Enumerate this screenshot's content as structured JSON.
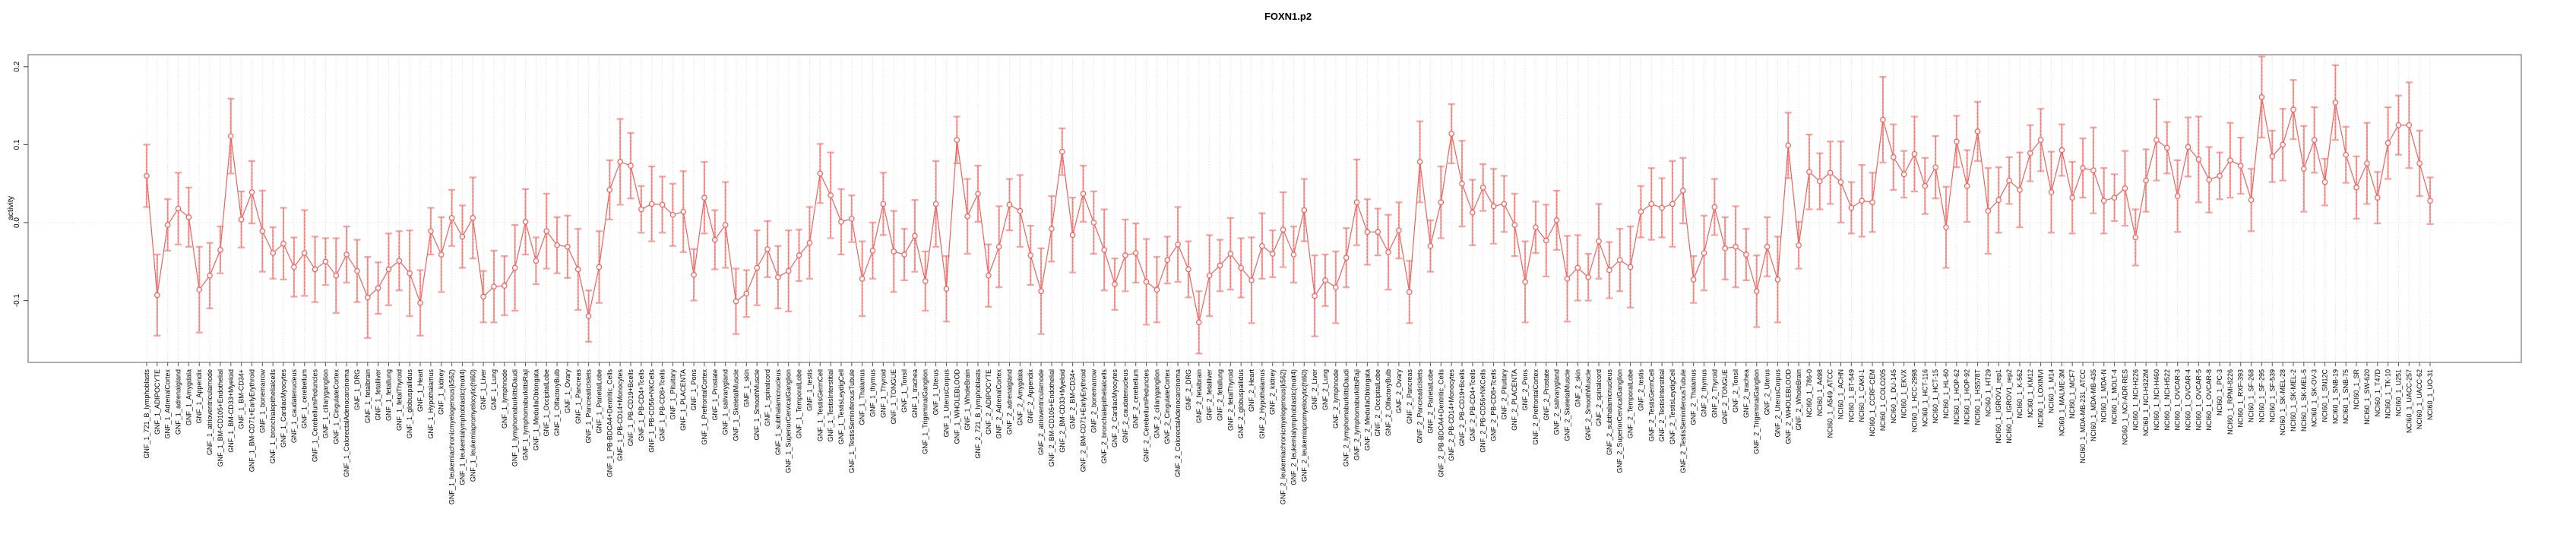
{
  "title": "FOXN1.p2",
  "y_axis_label": "activity",
  "chart_data": {
    "type": "line",
    "title": "FOXN1.p2",
    "xlabel": "",
    "ylabel": "activity",
    "ylim": [
      -0.155,
      0.215
    ],
    "yticks": [
      -0.1,
      0.0,
      0.1,
      0.2
    ],
    "ytick_labels": [
      "-0.1",
      "0.0",
      "0.1",
      "0.2"
    ],
    "grid": "vertical dotted gridline per category; dotted horizontal line at 0.0",
    "legend_position": "none",
    "marker": "open-circle",
    "line_style": "solid",
    "error_bars": true,
    "series_color": "#ee625e",
    "errorbar_color": "#f8a19d",
    "grid_color": "#d4d4d4",
    "frame_color": "#9a9a9a",
    "x_tick_label_rotation": 90,
    "categories": [
      "GNF_1_721_B_lymphoblasts",
      "GNF_1_ADIPOCYTE",
      "GNF_1_AdrenalCortex",
      "GNF_1_adrenalgland",
      "GNF_1_Amygdala",
      "GNF_1_Appendix",
      "GNF_1_atrioventricularnode",
      "GNF_1_BM-CD105+Endothelial",
      "GNF_1_BM-CD33+Myeloid",
      "GNF_1_BM-CD34+",
      "GNF_1_BM-CD71+EarlyErythroid",
      "GNF_1_bonemarrow",
      "GNF_1_bronchialepithelialcells",
      "GNF_1_CardiacMyocytes",
      "GNF_1_caudatenucleus",
      "GNF_1_cerebellum",
      "GNF_1_CerebellumPeduncles",
      "GNF_1_ciliaryganglion",
      "GNF_1_CingulateCortex",
      "GNF_1_ColorectalAdenocarcinoma",
      "GNF_1_DRG",
      "GNF_1_fetalbrain",
      "GNF_1_fetalliver",
      "GNF_1_fetallung",
      "GNF_1_fetalThyroid",
      "GNF_1_globuspallidus",
      "GNF_1_Heart",
      "GNF_1_Hypothalamus",
      "GNF_1_kidney",
      "GNF_1_leukemiachronicmyelogenous(k562)",
      "GNF_1_leukemialymphoblastic(molt4)",
      "GNF_1_leukemiapromyelocytic(hl60)",
      "GNF_1_Liver",
      "GNF_1_Lung",
      "GNF_1_lymphnode",
      "GNF_1_lymphomaburkittsDaudi",
      "GNF_1_lymphomaburkittsRaji",
      "GNF_1_MedullaOblongata",
      "GNF_1_OccipitalLobe",
      "GNF_1_OlfactoryBulb",
      "GNF_1_Ovary",
      "GNF_1_Pancreas",
      "GNF_1_PancreaticIslets",
      "GNF_1_ParietalLobe",
      "GNF_1_PB-BDCA4+Dentritic_Cells",
      "GNF_1_PB-CD14+Monocytes",
      "GNF_1_PB-CD19+Bcells",
      "GNF_1_PB-CD4+Tcells",
      "GNF_1_PB-CD56+NKCells",
      "GNF_1_PB-CD8+Tcells",
      "GNF_1_Pituitary",
      "GNF_1_PLACENTA",
      "GNF_1_Pons",
      "GNF_1_PrefrontalCortex",
      "GNF_1_Prostate",
      "GNF_1_salivarygland",
      "GNF_1_SkeletalMuscle",
      "GNF_1_skin",
      "GNF_1_SmoothMuscle",
      "GNF_1_spinalcord",
      "GNF_1_subthalamicnucleus",
      "GNF_1_SuperiorCervicalGanglion",
      "GNF_1_TemporalLobe",
      "GNF_1_testis",
      "GNF_1_TestisGermCell",
      "GNF_1_TestisInterstitial",
      "GNF_1_TestisLeydigCell",
      "GNF_1_TestisSeminiferousTubule",
      "GNF_1_Thalamus",
      "GNF_1_thymus",
      "GNF_1_Thyroid",
      "GNF_1_TONGUE",
      "GNF_1_Tonsil",
      "GNF_1_trachea",
      "GNF_1_TrigeminalGanglion",
      "GNF_1_Uterus",
      "GNF_1_UterusCorpus",
      "GNF_1_WHOLEBLOOD",
      "GNF_1_WholeBrain",
      "GNF_2_721_B_lymphoblasts",
      "GNF_2_ADIPOCYTE",
      "GNF_2_AdrenalCortex",
      "GNF_2_adrenalgland",
      "GNF_2_Amygdala",
      "GNF_2_Appendix",
      "GNF_2_atrioventricularnode",
      "GNF_2_BM-CD105+Endothelial",
      "GNF_2_BM-CD33+Myeloid",
      "GNF_2_BM-CD34+",
      "GNF_2_BM-CD71+EarlyErythroid",
      "GNF_2_bonemarrow",
      "GNF_2_bronchialepithelialcells",
      "GNF_2_CardiacMyocytes",
      "GNF_2_caudatenucleus",
      "GNF_2_cerebellum",
      "GNF_2_CerebellumPeduncles",
      "GNF_2_ciliaryganglion",
      "GNF_2_CingulateCortex",
      "GNF_2_ColorectalAdenocarcinoma",
      "GNF_2_DRG",
      "GNF_2_fetalbrain",
      "GNF_2_fetalliver",
      "GNF_2_fetallung",
      "GNF_2_fetalThyroid",
      "GNF_2_globuspallidus",
      "GNF_2_Heart",
      "GNF_2_Hypothalamus",
      "GNF_2_kidney",
      "GNF_2_leukemiachronicmyelogenous(k562)",
      "GNF_2_leukemialymphoblastic(molt4)",
      "GNF_2_leukemiapromyelocytic(hl60)",
      "GNF_2_Liver",
      "GNF_2_Lung",
      "GNF_2_lymphnode",
      "GNF_2_lymphomaburkittsDaudi",
      "GNF_2_lymphomaburkittsRaji",
      "GNF_2_MedullaOblongata",
      "GNF_2_OccipitalLobe",
      "GNF_2_OlfactoryBulb",
      "GNF_2_Ovary",
      "GNF_2_Pancreas",
      "GNF_2_PancreaticIslets",
      "GNF_2_ParietalLobe",
      "GNF_2_PB-BDCA4+Dentritic_Cells",
      "GNF_2_PB-CD14+Monocytes",
      "GNF_2_PB-CD19+Bcells",
      "GNF_2_PB-CD4+Tcells",
      "GNF_2_PB-CD56+NKCells",
      "GNF_2_PB-CD8+Tcells",
      "GNF_2_Pituitary",
      "GNF_2_PLACENTA",
      "GNF_2_Pons",
      "GNF_2_PrefrontalCortex",
      "GNF_2_Prostate",
      "GNF_2_salivarygland",
      "GNF_2_SkeletalMuscle",
      "GNF_2_skin",
      "GNF_2_SmoothMuscle",
      "GNF_2_spinalcord",
      "GNF_2_subthalamicnucleus",
      "GNF_2_SuperiorCervicalGanglion",
      "GNF_2_TemporalLobe",
      "GNF_2_testis",
      "GNF_2_TestisGermCell",
      "GNF_2_TestisInterstitial",
      "GNF_2_TestisLeydigCell",
      "GNF_2_TestisSeminiferousTubule",
      "GNF_2_Thalamus",
      "GNF_2_thymus",
      "GNF_2_Thyroid",
      "GNF_2_TONGUE",
      "GNF_2_Tonsil",
      "GNF_2_trachea",
      "GNF_2_TrigeminalGanglion",
      "GNF_2_Uterus",
      "GNF_2_UterusCorpus",
      "GNF_2_WHOLEBLOOD",
      "GNF_2_WholeBrain",
      "NCI60_1_786-0",
      "NCI60_1_A498",
      "NCI60_1_A549_ATCC",
      "NCI60_1_ACHN",
      "NCI60_1_BT-549",
      "NCI60_1_CAKI-1",
      "NCI60_1_CCRF-CEM",
      "NCI60_1_COLO205",
      "NCI60_1_DU-145",
      "NCI60_1_EKVX",
      "NCI60_1_HCC-2998",
      "NCI60_1_HCT-116",
      "NCI60_1_HCT-15",
      "NCI60_1_HL-60",
      "NCI60_1_HOP-62",
      "NCI60_1_HOP-92",
      "NCI60_1_HS578T",
      "NCI60_1_HT29",
      "NCI60_1_IGROV1_rep1",
      "NCI60_1_IGROV1_rep2",
      "NCI60_1_K-562",
      "NCI60_1_KM12",
      "NCI60_1_LOXIMVI",
      "NCI60_1_M14",
      "NCI60_1_MALME-3M",
      "NCI60_1_MCF7",
      "NCI60_1_MDA-MB-231_ATCC",
      "NCI60_1_MDA-MB-435",
      "NCI60_1_MDA-N",
      "NCI60_1_MOLT-4",
      "NCI60_1_NCI-ADR-RES",
      "NCI60_1_NCI-H226",
      "NCI60_1_NCI-H322M",
      "NCI60_1_NCI-H460",
      "NCI60_1_NCI-H522",
      "NCI60_1_OVCAR-3",
      "NCI60_1_OVCAR-4",
      "NCI60_1_OVCAR-5",
      "NCI60_1_OVCAR-8",
      "NCI60_1_PC-3",
      "NCI60_1_RPMI-8226",
      "NCI60_1_RXF-393",
      "NCI60_1_SF-268",
      "NCI60_1_SF-295",
      "NCI60_1_SF-539",
      "NCI60_1_SK-MEL-28",
      "NCI60_1_SK-MEL-2",
      "NCI60_1_SK-MEL-5",
      "NCI60_1_SK-OV-3",
      "NCI60_1_SN12C",
      "NCI60_1_SNB-19",
      "NCI60_1_SNB-75",
      "NCI60_1_SR",
      "NCI60_1_SW-620",
      "NCI60_1_T47D",
      "NCI60_1_TK-10",
      "NCI60_1_U251",
      "NCI60_1_UACC-257",
      "NCI60_1_UACC-62",
      "NCI60_1_UO-31"
    ],
    "values": [
      0.06,
      -0.093,
      -0.003,
      0.018,
      0.007,
      -0.086,
      -0.068,
      -0.035,
      0.111,
      0.004,
      0.039,
      -0.011,
      -0.039,
      -0.027,
      -0.057,
      -0.039,
      -0.06,
      -0.05,
      -0.068,
      -0.041,
      -0.062,
      -0.096,
      -0.084,
      -0.06,
      -0.049,
      -0.065,
      -0.103,
      -0.011,
      -0.041,
      0.006,
      -0.018,
      0.006,
      -0.095,
      -0.082,
      -0.081,
      -0.058,
      0.001,
      -0.049,
      -0.011,
      -0.029,
      -0.031,
      -0.06,
      -0.12,
      -0.057,
      0.042,
      0.078,
      0.073,
      0.017,
      0.024,
      0.023,
      0.01,
      0.014,
      -0.067,
      0.032,
      -0.022,
      -0.003,
      -0.101,
      -0.091,
      -0.058,
      -0.034,
      -0.07,
      -0.062,
      -0.042,
      -0.026,
      0.063,
      0.035,
      0.001,
      0.005,
      -0.072,
      -0.036,
      0.024,
      -0.037,
      -0.041,
      -0.017,
      -0.075,
      0.024,
      -0.085,
      0.106,
      0.008,
      0.037,
      -0.068,
      -0.031,
      0.023,
      0.015,
      -0.042,
      -0.088,
      -0.008,
      0.091,
      -0.016,
      0.037,
      0.0,
      -0.035,
      -0.079,
      -0.042,
      -0.039,
      -0.076,
      -0.086,
      -0.048,
      -0.028,
      -0.06,
      -0.128,
      -0.068,
      -0.055,
      -0.04,
      -0.058,
      -0.074,
      -0.03,
      -0.04,
      -0.009,
      -0.041,
      0.016,
      -0.094,
      -0.074,
      -0.083,
      -0.045,
      0.026,
      -0.012,
      -0.012,
      -0.038,
      -0.01,
      -0.089,
      0.078,
      -0.03,
      0.026,
      0.114,
      0.05,
      0.013,
      0.045,
      0.021,
      0.024,
      -0.003,
      -0.076,
      -0.006,
      -0.023,
      0.003,
      -0.072,
      -0.058,
      -0.07,
      -0.024,
      -0.061,
      -0.048,
      -0.057,
      0.014,
      0.024,
      0.019,
      0.024,
      0.041,
      -0.073,
      -0.039,
      0.02,
      -0.033,
      -0.031,
      -0.041,
      -0.088,
      -0.031,
      -0.073,
      0.099,
      -0.029,
      0.065,
      0.053,
      0.064,
      0.052,
      0.019,
      0.028,
      0.026,
      0.132,
      0.084,
      0.062,
      0.088,
      0.047,
      0.071,
      -0.006,
      0.104,
      0.047,
      0.117,
      0.015,
      0.029,
      0.054,
      0.042,
      0.089,
      0.106,
      0.039,
      0.093,
      0.032,
      0.07,
      0.067,
      0.028,
      0.032,
      0.044,
      -0.019,
      0.054,
      0.106,
      0.096,
      0.034,
      0.097,
      0.081,
      0.055,
      0.06,
      0.08,
      0.073,
      0.029,
      0.161,
      0.085,
      0.1,
      0.145,
      0.069,
      0.106,
      0.052,
      0.154,
      0.087,
      0.045,
      0.076,
      0.032,
      0.102,
      0.125,
      0.125,
      0.076,
      0.028
    ],
    "errors": [
      0.04,
      0.052,
      0.033,
      0.046,
      0.038,
      0.055,
      0.042,
      0.03,
      0.048,
      0.036,
      0.04,
      0.052,
      0.033,
      0.046,
      0.038,
      0.055,
      0.042,
      0.03,
      0.048,
      0.036,
      0.04,
      0.052,
      0.033,
      0.046,
      0.038,
      0.055,
      0.042,
      0.03,
      0.048,
      0.036,
      0.04,
      0.052,
      0.033,
      0.046,
      0.038,
      0.055,
      0.042,
      0.03,
      0.048,
      0.036,
      0.04,
      0.052,
      0.033,
      0.046,
      0.038,
      0.055,
      0.042,
      0.03,
      0.048,
      0.036,
      0.04,
      0.052,
      0.033,
      0.046,
      0.038,
      0.055,
      0.042,
      0.03,
      0.048,
      0.036,
      0.04,
      0.052,
      0.033,
      0.046,
      0.038,
      0.055,
      0.042,
      0.03,
      0.048,
      0.036,
      0.04,
      0.052,
      0.033,
      0.046,
      0.038,
      0.055,
      0.042,
      0.03,
      0.048,
      0.036,
      0.04,
      0.052,
      0.033,
      0.046,
      0.038,
      0.055,
      0.042,
      0.03,
      0.048,
      0.036,
      0.04,
      0.052,
      0.033,
      0.046,
      0.038,
      0.055,
      0.042,
      0.03,
      0.048,
      0.036,
      0.04,
      0.052,
      0.033,
      0.046,
      0.038,
      0.055,
      0.042,
      0.03,
      0.048,
      0.036,
      0.04,
      0.052,
      0.033,
      0.046,
      0.038,
      0.055,
      0.042,
      0.03,
      0.048,
      0.036,
      0.04,
      0.052,
      0.033,
      0.046,
      0.038,
      0.055,
      0.042,
      0.03,
      0.048,
      0.036,
      0.04,
      0.052,
      0.033,
      0.046,
      0.038,
      0.055,
      0.042,
      0.03,
      0.048,
      0.036,
      0.04,
      0.052,
      0.033,
      0.046,
      0.038,
      0.055,
      0.042,
      0.03,
      0.048,
      0.036,
      0.04,
      0.052,
      0.033,
      0.046,
      0.038,
      0.055,
      0.042,
      0.03,
      0.048,
      0.036,
      0.04,
      0.052,
      0.033,
      0.046,
      0.038,
      0.055,
      0.042,
      0.03,
      0.048,
      0.036,
      0.04,
      0.052,
      0.033,
      0.046,
      0.038,
      0.055,
      0.042,
      0.03,
      0.048,
      0.036,
      0.04,
      0.052,
      0.033,
      0.046,
      0.038,
      0.055,
      0.042,
      0.03,
      0.048,
      0.036,
      0.04,
      0.052,
      0.033,
      0.046,
      0.038,
      0.055,
      0.042,
      0.03,
      0.048,
      0.036,
      0.04,
      0.052,
      0.033,
      0.046,
      0.038,
      0.055,
      0.042,
      0.03,
      0.048,
      0.036,
      0.04,
      0.052,
      0.033,
      0.046,
      0.038,
      0.055,
      0.042,
      0.03
    ]
  }
}
